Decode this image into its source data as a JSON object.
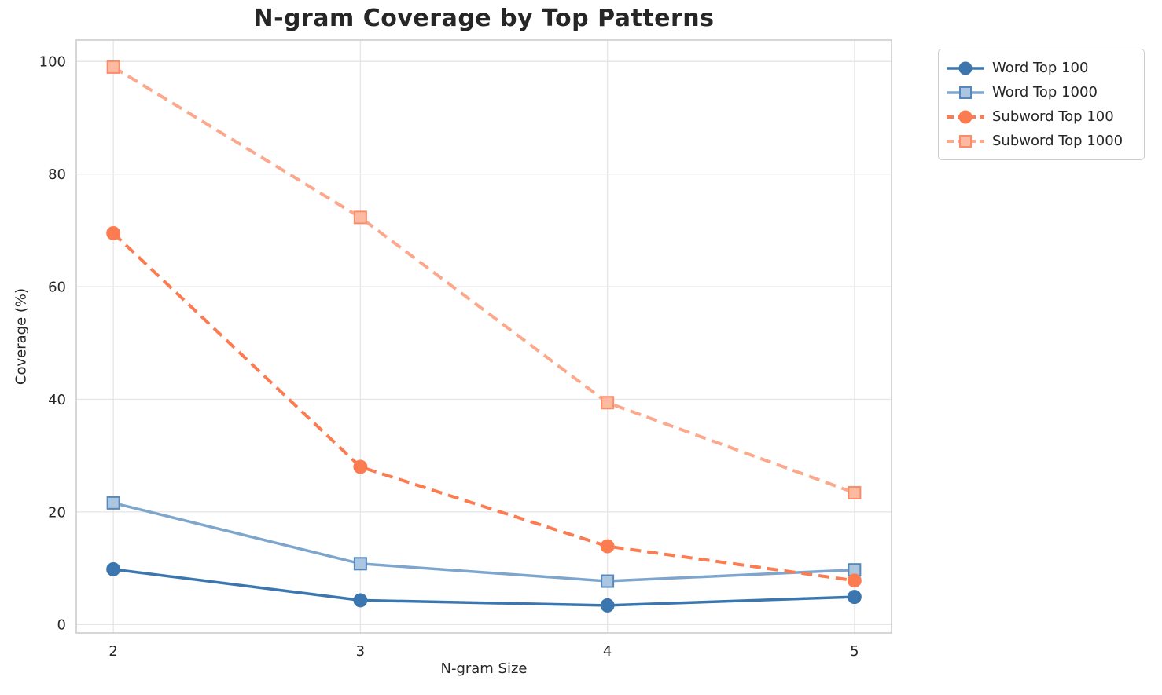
{
  "title": "N-gram Coverage by Top Patterns",
  "chart_data": {
    "type": "line",
    "title": "N-gram Coverage by Top Patterns",
    "xlabel": "N-gram Size",
    "ylabel": "Coverage (%)",
    "x": [
      2,
      3,
      4,
      5
    ],
    "xtick_labels": [
      "2",
      "3",
      "4",
      "5"
    ],
    "ytick_values": [
      0,
      20,
      40,
      60,
      80,
      100
    ],
    "ytick_labels": [
      "0",
      "20",
      "40",
      "60",
      "80",
      "100"
    ],
    "xlim": [
      1.85,
      5.15
    ],
    "ylim": [
      -1.5,
      103.8
    ],
    "grid": true,
    "legend_position": "outside-top-right",
    "series": [
      {
        "name": "Word Top 100",
        "values": [
          9.8,
          4.3,
          3.4,
          4.9
        ],
        "color": "#3b76ae",
        "marker": "circle",
        "marker_fill": "#3b76ae",
        "marker_edge": "#3b76ae",
        "line_style": "solid"
      },
      {
        "name": "Word Top 1000",
        "values": [
          21.6,
          10.8,
          7.7,
          9.7
        ],
        "color": "#7ea6cd",
        "marker": "square",
        "marker_fill": "#aac6e0",
        "marker_edge": "#5688bb",
        "line_style": "solid"
      },
      {
        "name": "Subword Top 100",
        "values": [
          69.5,
          28.0,
          13.9,
          7.8
        ],
        "color": "#fb7c51",
        "marker": "circle",
        "marker_fill": "#fb7c51",
        "marker_edge": "#fb7c51",
        "line_style": "dashed"
      },
      {
        "name": "Subword Top 1000",
        "values": [
          99.0,
          72.3,
          39.4,
          23.4
        ],
        "color": "#fca88c",
        "marker": "square",
        "marker_fill": "#fdbaa1",
        "marker_edge": "#fb8c67",
        "line_style": "dashed"
      }
    ],
    "colors": {
      "grid": "#e7e7e7",
      "spine": "#cdcdcd",
      "text": "#262626",
      "background": "#ffffff"
    }
  }
}
